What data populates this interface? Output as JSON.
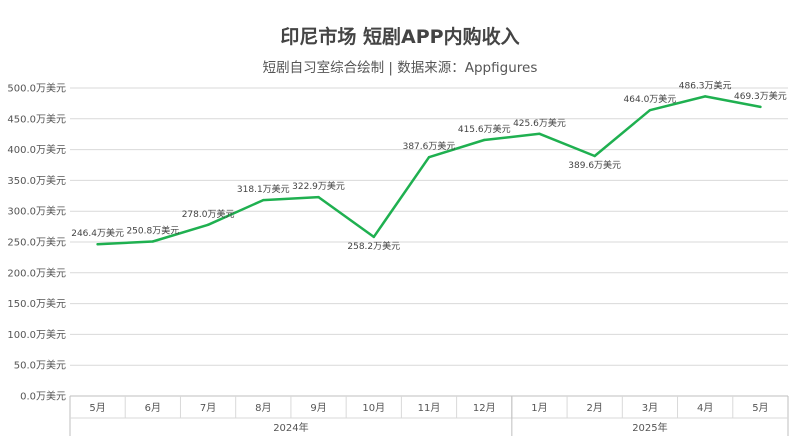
{
  "title": "印尼市场 短剧APP内购收入",
  "subtitle": "短剧自习室综合绘制 | 数据来源：Appfigures",
  "chart_data": {
    "type": "line",
    "title": "印尼市场 短剧APP内购收入",
    "subtitle": "短剧自习室综合绘制 | 数据来源：Appfigures",
    "categories": [
      "5月",
      "6月",
      "7月",
      "8月",
      "9月",
      "10月",
      "11月",
      "12月",
      "1月",
      "2月",
      "3月",
      "4月",
      "5月"
    ],
    "groups": [
      {
        "label": "2024年",
        "count": 8
      },
      {
        "label": "2025年",
        "count": 5
      }
    ],
    "series": [
      {
        "values": [
          246.4,
          250.8,
          278.0,
          318.1,
          322.9,
          258.2,
          387.6,
          415.6,
          425.6,
          389.6,
          464.0,
          486.3,
          469.3
        ],
        "color": "#1fb050"
      }
    ],
    "data_labels": [
      "246.4万美元",
      "250.8万美元",
      "278.0万美元",
      "318.1万美元",
      "322.9万美元",
      "258.2万美元",
      "387.6万美元",
      "415.6万美元",
      "425.6万美元",
      "389.6万美元",
      "464.0万美元",
      "486.3万美元",
      "469.3万美元"
    ],
    "y_ticks": [
      "0.0万美元",
      "50.0万美元",
      "100.0万美元",
      "150.0万美元",
      "200.0万美元",
      "250.0万美元",
      "300.0万美元",
      "350.0万美元",
      "400.0万美元",
      "450.0万美元",
      "500.0万美元"
    ],
    "ylim": [
      0,
      500
    ],
    "grid": true,
    "legend": "none"
  }
}
